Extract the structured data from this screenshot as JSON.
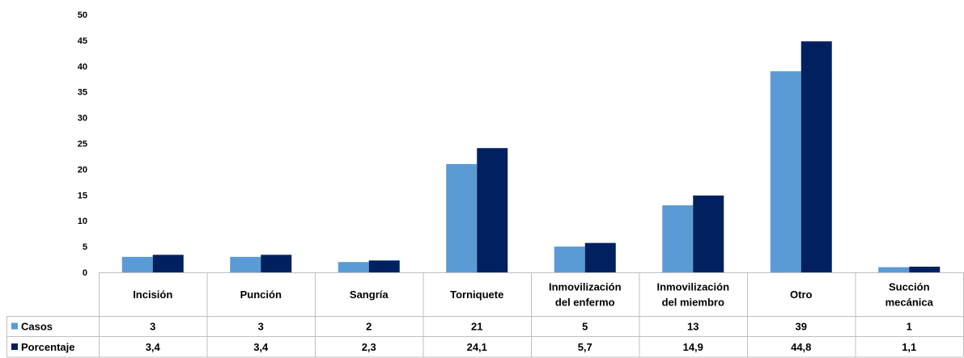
{
  "chart_data": {
    "type": "bar",
    "categories": [
      "Incisión",
      "Punción",
      "Sangría",
      "Torniquete",
      "Inmovilización del enfermo",
      "Inmovilización del miembro",
      "Otro",
      "Succión mecánica"
    ],
    "category_lines": [
      [
        "Incisión"
      ],
      [
        "Punción"
      ],
      [
        "Sangría"
      ],
      [
        "Torniquete"
      ],
      [
        "Inmovilización",
        "del enfermo"
      ],
      [
        "Inmovilización",
        "del miembro"
      ],
      [
        "Otro"
      ],
      [
        "Succión",
        "mecánica"
      ]
    ],
    "series": [
      {
        "name": "Casos",
        "color": "#5b9bd5",
        "values": [
          3,
          3,
          2,
          21,
          5,
          13,
          39,
          1
        ],
        "labels": [
          "3",
          "3",
          "2",
          "21",
          "5",
          "13",
          "39",
          "1"
        ]
      },
      {
        "name": "Porcentaje",
        "color": "#002060",
        "values": [
          3.4,
          3.4,
          2.3,
          24.1,
          5.7,
          14.9,
          44.8,
          1.1
        ],
        "labels": [
          "3,4",
          "3,4",
          "2,3",
          "24,1",
          "5,7",
          "14,9",
          "44,8",
          "1,1"
        ]
      }
    ],
    "ylim": [
      0,
      50
    ],
    "yticks": [
      0,
      5,
      10,
      15,
      20,
      25,
      30,
      35,
      40,
      45,
      50
    ],
    "grid": false,
    "legend": "data-table",
    "title": "",
    "xlabel": "",
    "ylabel": ""
  }
}
